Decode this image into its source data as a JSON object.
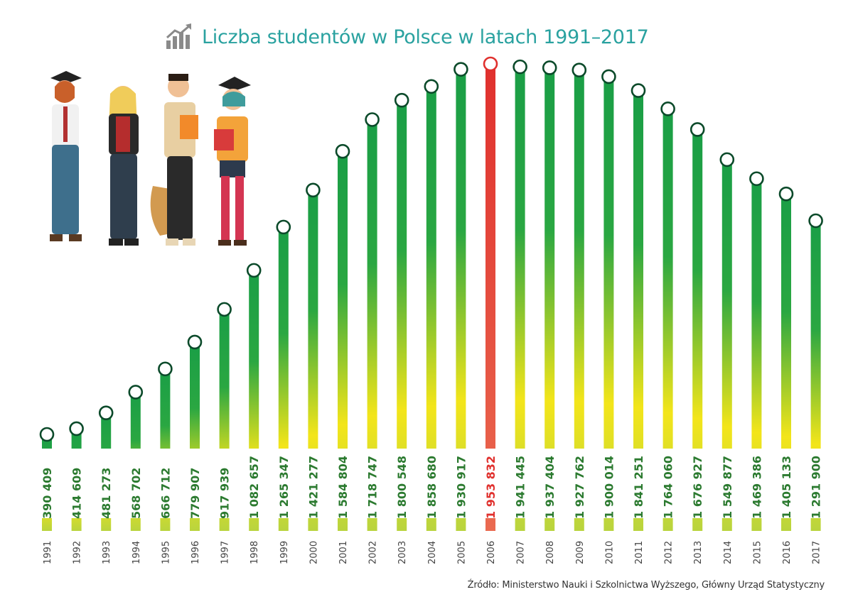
{
  "header": {
    "title": "Liczba studentów w Polsce w latach 1991–2017",
    "icon": "growth-chart-icon"
  },
  "illustration": {
    "name": "students-illustration"
  },
  "footer": {
    "source": "Źródło: Ministerstwo Nauki i Szkolnictwa Wyższego, Główny Urząd Statystyczny"
  },
  "colors": {
    "title": "#2aa2a0",
    "green": "#1a9e46",
    "yellow": "#f7e600",
    "highlight": "#e0302d",
    "label_green": "#2b7a2f"
  },
  "chart_data": {
    "type": "bar",
    "title": "Liczba studentów w Polsce w latach 1991–2017",
    "categories": [
      "1991",
      "1992",
      "1993",
      "1994",
      "1995",
      "1996",
      "1997",
      "1998",
      "1999",
      "2000",
      "2001",
      "2002",
      "2003",
      "2004",
      "2005",
      "2006",
      "2007",
      "2008",
      "2009",
      "2010",
      "2011",
      "2012",
      "2013",
      "2014",
      "2015",
      "2016",
      "2017"
    ],
    "values": [
      390409,
      414609,
      481273,
      568702,
      666712,
      779907,
      917939,
      1082657,
      1265347,
      1421277,
      1584804,
      1718747,
      1800548,
      1858680,
      1930917,
      1953832,
      1941445,
      1937404,
      1927762,
      1900014,
      1841251,
      1764060,
      1676927,
      1549877,
      1469386,
      1405133,
      1291900
    ],
    "value_labels": [
      "390 409",
      "414 609",
      "481 273",
      "568 702",
      "666 712",
      "779 907",
      "917 939",
      "1 082 657",
      "1 265 347",
      "1 421 277",
      "1 584 804",
      "1 718 747",
      "1 800 548",
      "1 858 680",
      "1 930 917",
      "1 953 832",
      "1 941 445",
      "1 937 404",
      "1 927 762",
      "1 900 014",
      "1 841 251",
      "1 764 060",
      "1 676 927",
      "1 549 877",
      "1 469 386",
      "1 405 133",
      "1 291 900"
    ],
    "highlight": "2006",
    "xlabel": "",
    "ylabel": "",
    "grid": false
  }
}
